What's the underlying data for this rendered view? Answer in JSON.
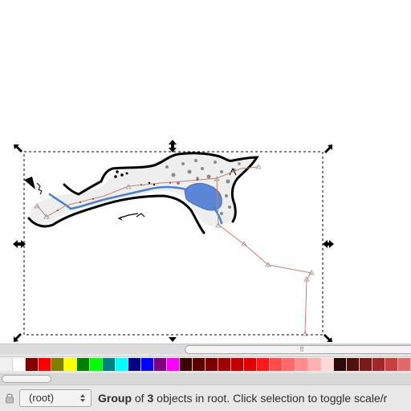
{
  "statusbar": {
    "layer_value": "(root)",
    "message_part1": "Group",
    "message_part2": " of ",
    "message_part3": "3",
    "message_part4": " objects in root. Click selection to toggle scale/r"
  },
  "scrollbar": {
    "grip": "⠿"
  },
  "palette": {
    "colors": [
      "#f0f0f0",
      "#ffffff",
      "#800000",
      "#ff0000",
      "#808000",
      "#ffff00",
      "#008000",
      "#00ff00",
      "#008080",
      "#00ffff",
      "#000080",
      "#0000ff",
      "#800080",
      "#ff00ff",
      "#3a0000",
      "#5a0000",
      "#7a0000",
      "#a00000",
      "#c00000",
      "#e00000",
      "#ff1a1a",
      "#ff4d4d",
      "#ff6a6a",
      "#ff8c8c",
      "#ffb0b0",
      "#ffd8d8",
      "#2a0a0a",
      "#501010",
      "#7a1a1a",
      "#a02828",
      "#c84040",
      "#e06a6a"
    ]
  },
  "icons": {
    "lock": "lock-icon",
    "layer_arrows": "updown-arrows-icon"
  }
}
